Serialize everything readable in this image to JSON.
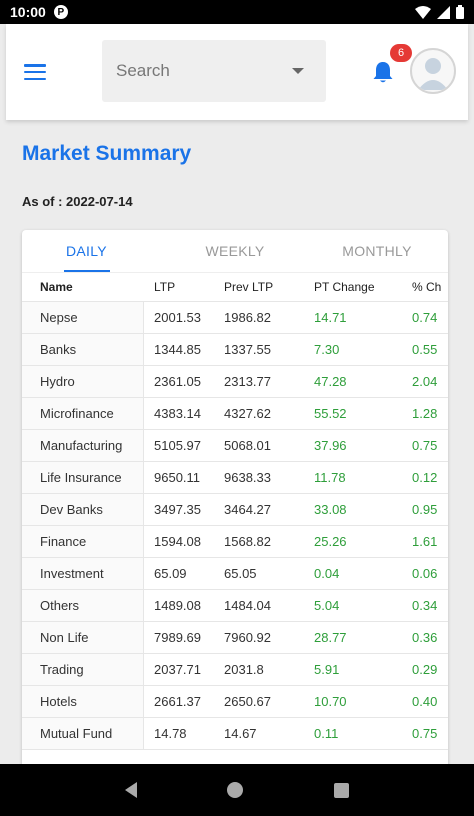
{
  "status": {
    "time": "10:00",
    "app_icon": "P"
  },
  "header": {
    "search_placeholder": "Search",
    "notification_count": "6"
  },
  "page": {
    "title": "Market Summary",
    "as_of": "As of : 2022-07-14"
  },
  "tabs": [
    {
      "label": "DAILY",
      "active": true
    },
    {
      "label": "WEEKLY",
      "active": false
    },
    {
      "label": "MONTHLY",
      "active": false
    }
  ],
  "table": {
    "columns": [
      "Name",
      "LTP",
      "Prev LTP",
      "PT Change",
      "% Ch"
    ],
    "rows": [
      [
        "Nepse",
        "2001.53",
        "1986.82",
        "14.71",
        "0.74"
      ],
      [
        "Banks",
        "1344.85",
        "1337.55",
        "7.30",
        "0.55"
      ],
      [
        "Hydro",
        "2361.05",
        "2313.77",
        "47.28",
        "2.04"
      ],
      [
        "Microfinance",
        "4383.14",
        "4327.62",
        "55.52",
        "1.28"
      ],
      [
        "Manufacturing",
        "5105.97",
        "5068.01",
        "37.96",
        "0.75"
      ],
      [
        "Life Insurance",
        "9650.11",
        "9638.33",
        "11.78",
        "0.12"
      ],
      [
        "Dev Banks",
        "3497.35",
        "3464.27",
        "33.08",
        "0.95"
      ],
      [
        "Finance",
        "1594.08",
        "1568.82",
        "25.26",
        "1.61"
      ],
      [
        "Investment",
        "65.09",
        "65.05",
        "0.04",
        "0.06"
      ],
      [
        "Others",
        "1489.08",
        "1484.04",
        "5.04",
        "0.34"
      ],
      [
        "Non Life",
        "7989.69",
        "7960.92",
        "28.77",
        "0.36"
      ],
      [
        "Trading",
        "2037.71",
        "2031.8",
        "5.91",
        "0.29"
      ],
      [
        "Hotels",
        "2661.37",
        "2650.67",
        "10.70",
        "0.40"
      ],
      [
        "Mutual Fund",
        "14.78",
        "14.67",
        "0.11",
        "0.75"
      ]
    ]
  },
  "icons": {
    "menu": "menu-icon",
    "dropdown": "chevron-down-icon",
    "notification": "bell-icon",
    "avatar": "user-avatar-icon",
    "wifi": "wifi-icon",
    "signal": "signal-icon",
    "battery": "battery-icon"
  },
  "colors": {
    "accent": "#1a73e8",
    "positive": "#2e9e3a",
    "badge": "#e53935"
  }
}
